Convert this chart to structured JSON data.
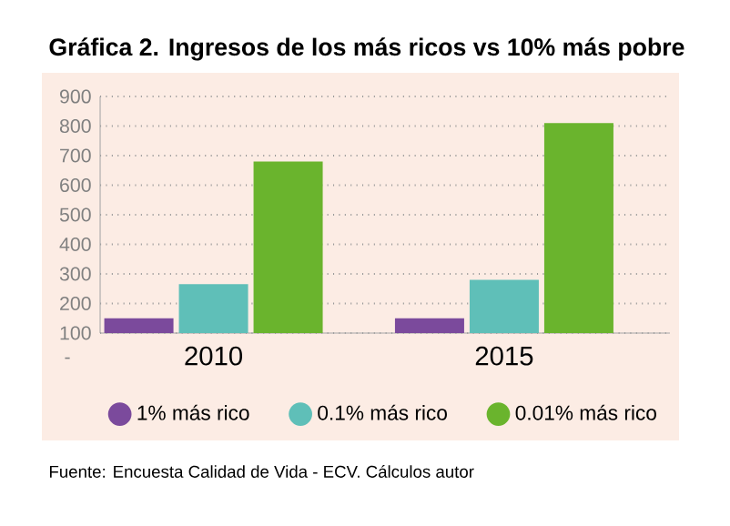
{
  "chart_data": {
    "type": "bar",
    "title": "Gráfica 2. Ingresos de los más ricos vs 10% más pobre",
    "categories": [
      "2010",
      "2015"
    ],
    "series": [
      {
        "name": "1% más rico",
        "color": "#7b4a9c",
        "values": [
          150,
          150
        ]
      },
      {
        "name": "0.1% más rico",
        "color": "#5fbfb8",
        "values": [
          265,
          280
        ]
      },
      {
        "name": "0.01% más rico",
        "color": "#6ab42d",
        "values": [
          680,
          810
        ]
      }
    ],
    "ylim": [
      100,
      900
    ],
    "yticks": [
      100,
      200,
      300,
      400,
      500,
      600,
      700,
      800,
      900
    ],
    "grid": "y",
    "legend": "bottom",
    "annotations": [
      "-",
      "Fuente: Encuesta Calidad de Vida - ECV. Cálculos autor"
    ]
  }
}
